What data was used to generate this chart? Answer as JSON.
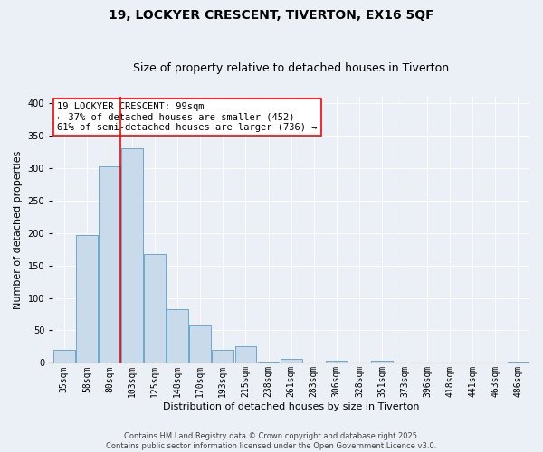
{
  "title": "19, LOCKYER CRESCENT, TIVERTON, EX16 5QF",
  "subtitle": "Size of property relative to detached houses in Tiverton",
  "xlabel": "Distribution of detached houses by size in Tiverton",
  "ylabel": "Number of detached properties",
  "categories": [
    "35sqm",
    "58sqm",
    "80sqm",
    "103sqm",
    "125sqm",
    "148sqm",
    "170sqm",
    "193sqm",
    "215sqm",
    "238sqm",
    "261sqm",
    "283sqm",
    "306sqm",
    "328sqm",
    "351sqm",
    "373sqm",
    "396sqm",
    "418sqm",
    "441sqm",
    "463sqm",
    "486sqm"
  ],
  "values": [
    20,
    197,
    303,
    330,
    167,
    82,
    57,
    20,
    25,
    2,
    6,
    0,
    4,
    0,
    3,
    0,
    0,
    0,
    0,
    0,
    2
  ],
  "bar_color": "#c9daea",
  "bar_edge_color": "#5a9ec8",
  "red_line_index": 3,
  "annotation_line1": "19 LOCKYER CRESCENT: 99sqm",
  "annotation_line2": "← 37% of detached houses are smaller (452)",
  "annotation_line3": "61% of semi-detached houses are larger (736) →",
  "footer_line1": "Contains HM Land Registry data © Crown copyright and database right 2025.",
  "footer_line2": "Contains public sector information licensed under the Open Government Licence v3.0.",
  "ylim": [
    0,
    410
  ],
  "yticks": [
    0,
    50,
    100,
    150,
    200,
    250,
    300,
    350,
    400
  ],
  "background_color": "#eaf0f6",
  "plot_background": "#eaf0f6",
  "grid_color": "#ffffff",
  "title_fontsize": 10,
  "subtitle_fontsize": 9,
  "axis_label_fontsize": 8,
  "tick_fontsize": 7,
  "annotation_fontsize": 7.5,
  "footer_fontsize": 6
}
